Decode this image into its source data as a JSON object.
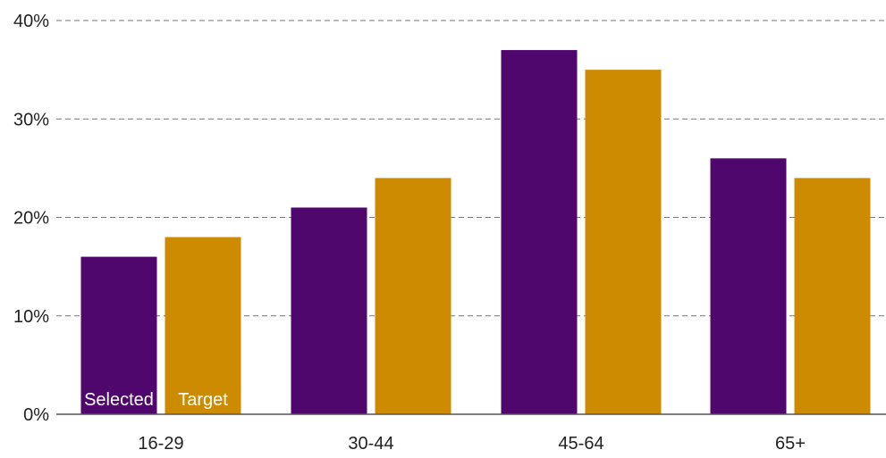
{
  "chart_data": {
    "type": "bar",
    "categories": [
      "16-29",
      "30-44",
      "45-64",
      "65+"
    ],
    "series": [
      {
        "name": "Selected",
        "values": [
          16,
          21,
          37,
          26
        ]
      },
      {
        "name": "Target",
        "values": [
          18,
          24,
          35,
          24
        ]
      }
    ],
    "ylim": [
      0,
      40
    ],
    "yticks": [
      0,
      10,
      20,
      30,
      40
    ],
    "ytick_labels": [
      "0%",
      "10%",
      "20%",
      "30%",
      "40%"
    ],
    "grid": true,
    "legend": "inside-first-group-bars",
    "colors": {
      "Selected": "#4f076e",
      "Target": "#cc8b00",
      "grid": "#777777",
      "axis": "#555555",
      "text": "#222222",
      "series_label": "#ffffff"
    }
  }
}
